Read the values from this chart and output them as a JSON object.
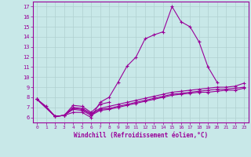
{
  "xlabel": "Windchill (Refroidissement éolien,°C)",
  "xlim": [
    -0.5,
    23.5
  ],
  "ylim": [
    5.5,
    17.5
  ],
  "xticks": [
    0,
    1,
    2,
    3,
    4,
    5,
    6,
    7,
    8,
    9,
    10,
    11,
    12,
    13,
    14,
    15,
    16,
    17,
    18,
    19,
    20,
    21,
    22,
    23
  ],
  "yticks": [
    6,
    7,
    8,
    9,
    10,
    11,
    12,
    13,
    14,
    15,
    16,
    17
  ],
  "background_color": "#c8e8e8",
  "line_color": "#990099",
  "grid_color": "#b0d0d0",
  "lines": [
    [
      7.8,
      7.1,
      6.1,
      6.2,
      6.5,
      6.5,
      6.0,
      7.5,
      8.0,
      9.5,
      11.1,
      12.0,
      13.8,
      14.2,
      14.5,
      17.0,
      15.5,
      15.0,
      13.5,
      11.0,
      9.5,
      null,
      null,
      null
    ],
    [
      7.8,
      null,
      6.1,
      6.2,
      7.2,
      7.1,
      6.5,
      7.3,
      7.5,
      null,
      null,
      null,
      null,
      null,
      null,
      null,
      null,
      null,
      null,
      null,
      null,
      null,
      null,
      null
    ],
    [
      7.8,
      null,
      6.1,
      6.2,
      7.0,
      6.9,
      6.4,
      6.9,
      7.1,
      7.3,
      7.5,
      7.7,
      7.9,
      8.1,
      8.3,
      8.5,
      8.6,
      8.7,
      8.8,
      8.9,
      9.0,
      9.0,
      9.1,
      9.4
    ],
    [
      7.8,
      null,
      6.1,
      6.2,
      6.9,
      6.8,
      6.3,
      6.8,
      6.9,
      7.1,
      7.3,
      7.5,
      7.7,
      7.9,
      8.1,
      8.3,
      8.4,
      8.5,
      8.6,
      8.7,
      8.8,
      8.8,
      8.9,
      9.0
    ],
    [
      7.8,
      null,
      6.1,
      6.2,
      6.8,
      6.7,
      6.2,
      6.7,
      6.8,
      7.0,
      7.2,
      7.4,
      7.6,
      7.8,
      8.0,
      8.2,
      8.3,
      8.4,
      8.5,
      8.5,
      8.6,
      8.7,
      8.7,
      8.9
    ]
  ]
}
